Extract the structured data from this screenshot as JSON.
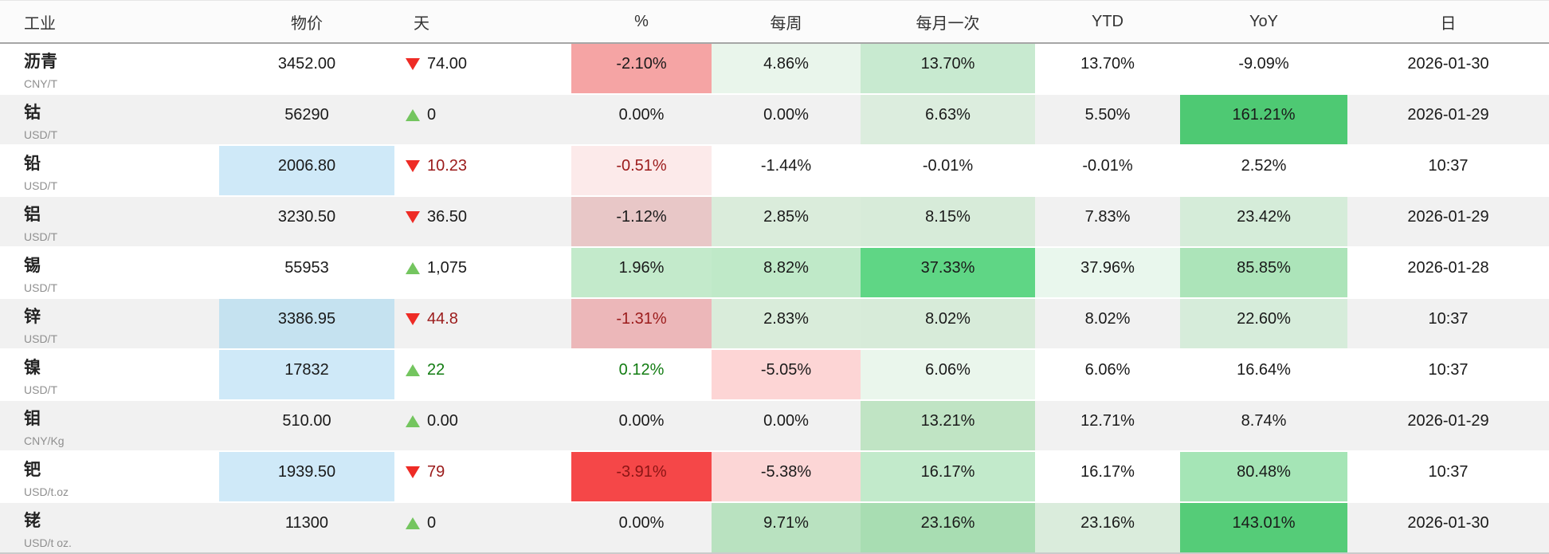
{
  "header": {
    "columns": [
      "工业",
      "物价",
      "天",
      "%",
      "每周",
      "每月一次",
      "YTD",
      "YoY",
      "日"
    ]
  },
  "colors": {
    "triangle_up": "#74c55f",
    "triangle_down": "#ee2b25",
    "live_down_text": "#9b1b1b",
    "live_up_text": "#127c12",
    "default_text": "#1a1a1a",
    "price_highlight": "#cfe9f8",
    "row_alt_bg": "#f1f1f1",
    "strong_gain_bg": "#4ec973",
    "strong_loss_bg": "#f54748"
  },
  "rows": [
    {
      "name": "沥青",
      "unit": "CNY/T",
      "price": "3452.00",
      "price_bg": "",
      "day_dir": "down",
      "day_value": "74.00",
      "day_color": "#1a1a1a",
      "pct": "-2.10%",
      "pct_bg": "#f5a4a4",
      "pct_color": "#1a1a1a",
      "weekly": "4.86%",
      "weekly_bg": "#e9f5eb",
      "monthly": "13.70%",
      "monthly_bg": "#c8ead0",
      "ytd": "13.70%",
      "ytd_bg": "",
      "yoy": "-9.09%",
      "yoy_bg": "",
      "date": "2026-01-30",
      "row_bg": "#ffffff"
    },
    {
      "name": "钴",
      "unit": "USD/T",
      "price": "56290",
      "price_bg": "",
      "day_dir": "up",
      "day_value": "0",
      "day_color": "#1a1a1a",
      "pct": "0.00%",
      "pct_bg": "",
      "pct_color": "#1a1a1a",
      "weekly": "0.00%",
      "weekly_bg": "",
      "monthly": "6.63%",
      "monthly_bg": "#dcedde",
      "ytd": "5.50%",
      "ytd_bg": "",
      "yoy": "161.21%",
      "yoy_bg": "#4ec973",
      "date": "2026-01-29",
      "row_bg": "#f1f1f1"
    },
    {
      "name": "铅",
      "unit": "USD/T",
      "price": "2006.80",
      "price_bg": "#cfe9f8",
      "day_dir": "down",
      "day_value": "10.23",
      "day_color": "#9b1b1b",
      "pct": "-0.51%",
      "pct_bg": "#fceaea",
      "pct_color": "#9b1b1b",
      "weekly": "-1.44%",
      "weekly_bg": "",
      "monthly": "-0.01%",
      "monthly_bg": "",
      "ytd": "-0.01%",
      "ytd_bg": "",
      "yoy": "2.52%",
      "yoy_bg": "",
      "date": "10:37",
      "row_bg": "#ffffff"
    },
    {
      "name": "铝",
      "unit": "USD/T",
      "price": "3230.50",
      "price_bg": "",
      "day_dir": "down",
      "day_value": "36.50",
      "day_color": "#1a1a1a",
      "pct": "-1.12%",
      "pct_bg": "#e8c7c7",
      "pct_color": "#1a1a1a",
      "weekly": "2.85%",
      "weekly_bg": "#daecdb",
      "monthly": "8.15%",
      "monthly_bg": "#d7ebd9",
      "ytd": "7.83%",
      "ytd_bg": "",
      "yoy": "23.42%",
      "yoy_bg": "#d5ecd9",
      "date": "2026-01-29",
      "row_bg": "#f1f1f1"
    },
    {
      "name": "锡",
      "unit": "USD/T",
      "price": "55953",
      "price_bg": "",
      "day_dir": "up",
      "day_value": "1,075",
      "day_color": "#1a1a1a",
      "pct": "1.96%",
      "pct_bg": "#c3eacb",
      "pct_color": "#1a1a1a",
      "weekly": "8.82%",
      "weekly_bg": "#bfe9c8",
      "monthly": "37.33%",
      "monthly_bg": "#5fd685",
      "ytd": "37.96%",
      "ytd_bg": "#e9f7ed",
      "yoy": "85.85%",
      "yoy_bg": "#ace4b9",
      "date": "2026-01-28",
      "row_bg": "#ffffff"
    },
    {
      "name": "锌",
      "unit": "USD/T",
      "price": "3386.95",
      "price_bg": "#c5e2f0",
      "day_dir": "down",
      "day_value": "44.8",
      "day_color": "#9b1b1b",
      "pct": "-1.31%",
      "pct_bg": "#ecb7b9",
      "pct_color": "#9b1b1b",
      "weekly": "2.83%",
      "weekly_bg": "#d9ecda",
      "monthly": "8.02%",
      "monthly_bg": "#d7ebd9",
      "ytd": "8.02%",
      "ytd_bg": "",
      "yoy": "22.60%",
      "yoy_bg": "#d6ecda",
      "date": "10:37",
      "row_bg": "#f1f1f1"
    },
    {
      "name": "镍",
      "unit": "USD/T",
      "price": "17832",
      "price_bg": "#cfe9f8",
      "day_dir": "up",
      "day_value": "22",
      "day_color": "#127c12",
      "pct": "0.12%",
      "pct_bg": "",
      "pct_color": "#127c12",
      "weekly": "-5.05%",
      "weekly_bg": "#fdd5d5",
      "monthly": "6.06%",
      "monthly_bg": "#eaf6ec",
      "ytd": "6.06%",
      "ytd_bg": "",
      "yoy": "16.64%",
      "yoy_bg": "",
      "date": "10:37",
      "row_bg": "#ffffff"
    },
    {
      "name": "钼",
      "unit": "CNY/Kg",
      "price": "510.00",
      "price_bg": "",
      "day_dir": "up",
      "day_value": "0.00",
      "day_color": "#1a1a1a",
      "pct": "0.00%",
      "pct_bg": "",
      "pct_color": "#1a1a1a",
      "weekly": "0.00%",
      "weekly_bg": "",
      "monthly": "13.21%",
      "monthly_bg": "#c0e4c4",
      "ytd": "12.71%",
      "ytd_bg": "",
      "yoy": "8.74%",
      "yoy_bg": "",
      "date": "2026-01-29",
      "row_bg": "#f1f1f1"
    },
    {
      "name": "钯",
      "unit": "USD/t.oz",
      "price": "1939.50",
      "price_bg": "#cfe9f8",
      "day_dir": "down",
      "day_value": "79",
      "day_color": "#9b1b1b",
      "pct": "-3.91%",
      "pct_bg": "#f54748",
      "pct_color": "#8b1515",
      "weekly": "-5.38%",
      "weekly_bg": "#fcd6d6",
      "monthly": "16.17%",
      "monthly_bg": "#c2eacb",
      "ytd": "16.17%",
      "ytd_bg": "",
      "yoy": "80.48%",
      "yoy_bg": "#a5e5b6",
      "date": "10:37",
      "row_bg": "#ffffff"
    },
    {
      "name": "铑",
      "unit": "USD/t oz.",
      "price": "11300",
      "price_bg": "",
      "day_dir": "up",
      "day_value": "0",
      "day_color": "#1a1a1a",
      "pct": "0.00%",
      "pct_bg": "",
      "pct_color": "#1a1a1a",
      "weekly": "9.71%",
      "weekly_bg": "#b9e2c0",
      "monthly": "23.16%",
      "monthly_bg": "#a8ddb2",
      "ytd": "23.16%",
      "ytd_bg": "#daecdc",
      "yoy": "143.01%",
      "yoy_bg": "#55cc78",
      "date": "2026-01-30",
      "row_bg": "#f1f1f1"
    }
  ]
}
